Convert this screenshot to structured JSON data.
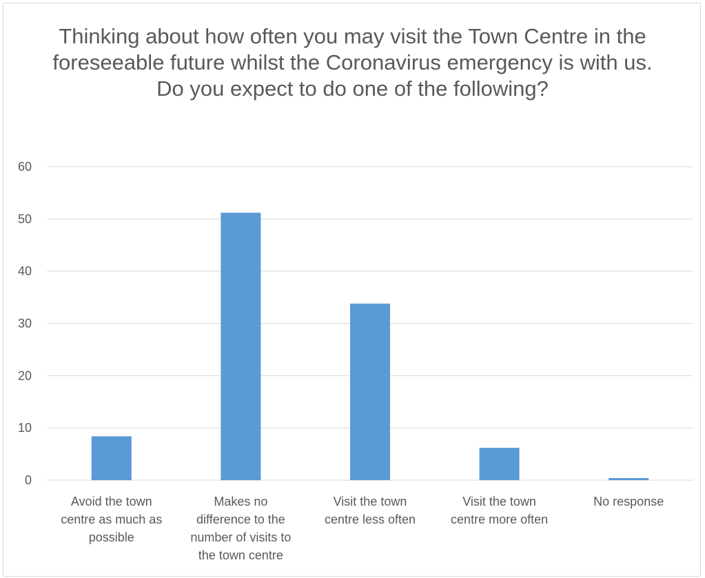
{
  "chart_data": {
    "type": "bar",
    "title": "Thinking about how often you may visit the Town Centre in the foreseeable future whilst the Coronavirus emergency is with us. Do you expect to do one of the following?",
    "categories": [
      "Avoid the town centre as much as possible",
      "Makes no difference to the number of visits to the town centre",
      "Visit the town centre less often",
      "Visit the town centre more often",
      "No response"
    ],
    "category_lines": [
      [
        "Avoid the town",
        "centre as much as",
        "possible"
      ],
      [
        "Makes no",
        "difference to the",
        "number of visits to",
        "the town centre"
      ],
      [
        "Visit the town",
        "centre less often"
      ],
      [
        "Visit the town",
        "centre more often"
      ],
      [
        "No response"
      ]
    ],
    "values": [
      8.4,
      51.2,
      33.8,
      6.2,
      0.4
    ],
    "ylim": [
      0,
      60
    ],
    "yticks": [
      0,
      10,
      20,
      30,
      40,
      50,
      60
    ],
    "xlabel": "",
    "ylabel": "",
    "grid": true,
    "legend": "none",
    "bar_color": "#5b9bd5",
    "grid_color": "#d9d9d9"
  }
}
